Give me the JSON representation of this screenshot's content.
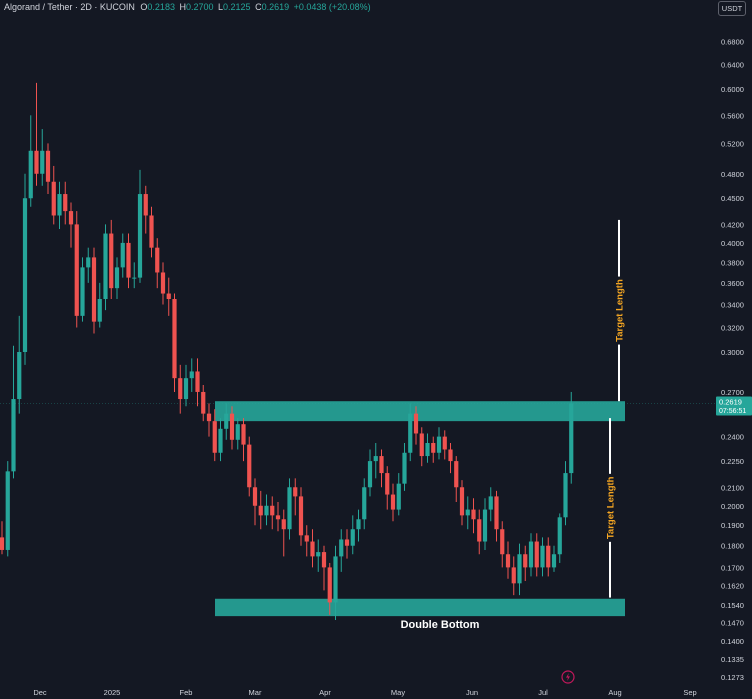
{
  "header": {
    "symbol": "Algorand / Tether · 2D · KUCOIN",
    "o_label": "O",
    "o_value": "0.2183",
    "h_label": "H",
    "h_value": "0.2700",
    "l_label": "L",
    "l_value": "0.2125",
    "c_label": "C",
    "c_value": "0.2619",
    "change": "+0.0438 (+20.08%)",
    "currency": "USDT"
  },
  "colors": {
    "background": "#141823",
    "up": "#26a69a",
    "down": "#ef5350",
    "zone": "#26a69a",
    "target_line": "#ffffff",
    "target_text": "#f5a623",
    "axis_text": "#d1d4dc"
  },
  "icons": {
    "bottom": "lightning-bolt-icon"
  },
  "chart_data": {
    "type": "candlestick",
    "title": "Algorand / Tether · 2D · KUCOIN",
    "y_scale": "log",
    "ylim": [
      0.125,
      0.72
    ],
    "y_ticks": [
      "0.6800",
      "0.6400",
      "0.6000",
      "0.5600",
      "0.5200",
      "0.4800",
      "0.4500",
      "0.4200",
      "0.4000",
      "0.3800",
      "0.3600",
      "0.3400",
      "0.3200",
      "0.3000",
      "0.2700",
      "0.2400",
      "0.2250",
      "0.2100",
      "0.2000",
      "0.1900",
      "0.1800",
      "0.1700",
      "0.1620",
      "0.1540",
      "0.1470",
      "0.1400",
      "0.1335",
      "0.1273"
    ],
    "x_ticks": [
      "Dec",
      "2025",
      "Feb",
      "Mar",
      "Apr",
      "May",
      "Jun",
      "Jul",
      "Aug",
      "Sep"
    ],
    "current_price": "0.2619",
    "countdown": "07:56:51",
    "zones": [
      {
        "name": "resistance",
        "low": 0.25,
        "high": 0.2635
      },
      {
        "name": "support",
        "low": 0.1495,
        "high": 0.1565
      }
    ],
    "zone_label": "Double Bottom",
    "target_label": "Target Length",
    "targets": [
      {
        "from": 0.2635,
        "to": 0.425
      },
      {
        "from": 0.157,
        "to": 0.252
      }
    ],
    "candles": [
      [
        0.184,
        0.178,
        0.192,
        0.176
      ],
      [
        0.178,
        0.219,
        0.225,
        0.175
      ],
      [
        0.219,
        0.265,
        0.305,
        0.215
      ],
      [
        0.265,
        0.3,
        0.33,
        0.255
      ],
      [
        0.3,
        0.45,
        0.48,
        0.29
      ],
      [
        0.45,
        0.51,
        0.56,
        0.44
      ],
      [
        0.51,
        0.48,
        0.61,
        0.465
      ],
      [
        0.48,
        0.51,
        0.54,
        0.465
      ],
      [
        0.51,
        0.47,
        0.52,
        0.455
      ],
      [
        0.47,
        0.43,
        0.49,
        0.42
      ],
      [
        0.43,
        0.455,
        0.47,
        0.415
      ],
      [
        0.455,
        0.435,
        0.47,
        0.42
      ],
      [
        0.435,
        0.42,
        0.445,
        0.395
      ],
      [
        0.42,
        0.33,
        0.435,
        0.32
      ],
      [
        0.33,
        0.375,
        0.385,
        0.325
      ],
      [
        0.375,
        0.385,
        0.395,
        0.36
      ],
      [
        0.385,
        0.325,
        0.395,
        0.315
      ],
      [
        0.325,
        0.345,
        0.36,
        0.32
      ],
      [
        0.345,
        0.41,
        0.42,
        0.335
      ],
      [
        0.41,
        0.355,
        0.425,
        0.345
      ],
      [
        0.355,
        0.375,
        0.385,
        0.345
      ],
      [
        0.375,
        0.4,
        0.41,
        0.365
      ],
      [
        0.4,
        0.365,
        0.41,
        0.355
      ],
      [
        0.365,
        0.365,
        0.38,
        0.355
      ],
      [
        0.365,
        0.455,
        0.485,
        0.36
      ],
      [
        0.455,
        0.43,
        0.465,
        0.41
      ],
      [
        0.43,
        0.395,
        0.44,
        0.385
      ],
      [
        0.395,
        0.37,
        0.405,
        0.355
      ],
      [
        0.37,
        0.35,
        0.38,
        0.34
      ],
      [
        0.35,
        0.345,
        0.365,
        0.33
      ],
      [
        0.345,
        0.28,
        0.35,
        0.27
      ],
      [
        0.28,
        0.265,
        0.29,
        0.255
      ],
      [
        0.265,
        0.28,
        0.29,
        0.26
      ],
      [
        0.28,
        0.285,
        0.295,
        0.27
      ],
      [
        0.285,
        0.27,
        0.295,
        0.26
      ],
      [
        0.27,
        0.255,
        0.275,
        0.25
      ],
      [
        0.255,
        0.25,
        0.262,
        0.24
      ],
      [
        0.25,
        0.23,
        0.258,
        0.225
      ],
      [
        0.23,
        0.245,
        0.252,
        0.225
      ],
      [
        0.245,
        0.255,
        0.262,
        0.238
      ],
      [
        0.255,
        0.238,
        0.26,
        0.232
      ],
      [
        0.238,
        0.248,
        0.252,
        0.232
      ],
      [
        0.248,
        0.235,
        0.252,
        0.225
      ],
      [
        0.235,
        0.21,
        0.24,
        0.205
      ],
      [
        0.21,
        0.2,
        0.215,
        0.19
      ],
      [
        0.2,
        0.195,
        0.208,
        0.188
      ],
      [
        0.195,
        0.2,
        0.206,
        0.19
      ],
      [
        0.2,
        0.195,
        0.205,
        0.188
      ],
      [
        0.195,
        0.193,
        0.202,
        0.187
      ],
      [
        0.193,
        0.188,
        0.198,
        0.175
      ],
      [
        0.188,
        0.21,
        0.215,
        0.183
      ],
      [
        0.21,
        0.205,
        0.215,
        0.195
      ],
      [
        0.205,
        0.185,
        0.21,
        0.18
      ],
      [
        0.185,
        0.182,
        0.19,
        0.175
      ],
      [
        0.182,
        0.175,
        0.188,
        0.17
      ],
      [
        0.175,
        0.177,
        0.183,
        0.168
      ],
      [
        0.177,
        0.17,
        0.18,
        0.16
      ],
      [
        0.17,
        0.155,
        0.172,
        0.15
      ],
      [
        0.155,
        0.175,
        0.18,
        0.148
      ],
      [
        0.175,
        0.183,
        0.188,
        0.168
      ],
      [
        0.183,
        0.18,
        0.188,
        0.174
      ],
      [
        0.18,
        0.188,
        0.195,
        0.176
      ],
      [
        0.188,
        0.193,
        0.198,
        0.182
      ],
      [
        0.193,
        0.21,
        0.215,
        0.188
      ],
      [
        0.21,
        0.225,
        0.232,
        0.205
      ],
      [
        0.225,
        0.228,
        0.236,
        0.215
      ],
      [
        0.228,
        0.218,
        0.232,
        0.21
      ],
      [
        0.218,
        0.206,
        0.222,
        0.198
      ],
      [
        0.206,
        0.198,
        0.212,
        0.192
      ],
      [
        0.198,
        0.212,
        0.218,
        0.195
      ],
      [
        0.212,
        0.23,
        0.236,
        0.208
      ],
      [
        0.23,
        0.255,
        0.262,
        0.225
      ],
      [
        0.255,
        0.242,
        0.26,
        0.235
      ],
      [
        0.242,
        0.228,
        0.246,
        0.222
      ],
      [
        0.228,
        0.236,
        0.242,
        0.224
      ],
      [
        0.236,
        0.23,
        0.24,
        0.224
      ],
      [
        0.23,
        0.24,
        0.246,
        0.226
      ],
      [
        0.24,
        0.232,
        0.244,
        0.226
      ],
      [
        0.232,
        0.225,
        0.236,
        0.218
      ],
      [
        0.225,
        0.21,
        0.228,
        0.202
      ],
      [
        0.21,
        0.195,
        0.214,
        0.19
      ],
      [
        0.195,
        0.198,
        0.205,
        0.188
      ],
      [
        0.198,
        0.193,
        0.204,
        0.186
      ],
      [
        0.193,
        0.182,
        0.198,
        0.176
      ],
      [
        0.182,
        0.198,
        0.204,
        0.178
      ],
      [
        0.198,
        0.205,
        0.21,
        0.192
      ],
      [
        0.205,
        0.188,
        0.208,
        0.182
      ],
      [
        0.188,
        0.176,
        0.192,
        0.17
      ],
      [
        0.176,
        0.17,
        0.182,
        0.165
      ],
      [
        0.17,
        0.163,
        0.175,
        0.158
      ],
      [
        0.163,
        0.176,
        0.181,
        0.158
      ],
      [
        0.176,
        0.17,
        0.18,
        0.164
      ],
      [
        0.17,
        0.182,
        0.186,
        0.166
      ],
      [
        0.182,
        0.17,
        0.186,
        0.166
      ],
      [
        0.17,
        0.18,
        0.184,
        0.166
      ],
      [
        0.18,
        0.17,
        0.184,
        0.166
      ],
      [
        0.17,
        0.176,
        0.18,
        0.168
      ],
      [
        0.176,
        0.194,
        0.196,
        0.172
      ],
      [
        0.194,
        0.218,
        0.225,
        0.19
      ],
      [
        0.218,
        0.262,
        0.27,
        0.212
      ]
    ]
  }
}
